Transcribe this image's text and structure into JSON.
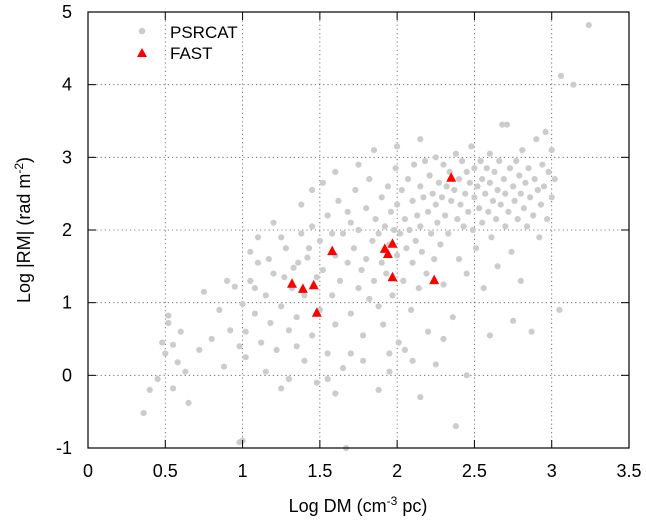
{
  "chart_data": {
    "type": "scatter",
    "xlabel": "Log DM (cm$-3$ pc)",
    "xlabel_parts": {
      "prefix": "Log DM (cm",
      "sup": "-3",
      "suffix": " pc)"
    },
    "ylabel_parts": {
      "prefix": "Log |RM| (rad m",
      "sup": "-2",
      "suffix": ")"
    },
    "xlim": [
      0,
      3.5
    ],
    "ylim": [
      -1,
      5
    ],
    "xticks": [
      0,
      0.5,
      1,
      1.5,
      2,
      2.5,
      3,
      3.5
    ],
    "xtick_labels": [
      "0",
      "0.5",
      "1",
      "1.5",
      "2",
      "2.5",
      "3",
      "3.5"
    ],
    "yticks": [
      -1,
      0,
      1,
      2,
      3,
      4,
      5
    ],
    "ytick_labels": [
      "-1",
      "0",
      "1",
      "2",
      "3",
      "4",
      "5"
    ],
    "grid": true,
    "grid_style": "dotted",
    "legend_position": "top-left",
    "colors": {
      "psrcat": "#cccccc",
      "fast": "#ff0000"
    },
    "series": [
      {
        "name": "PSRCAT",
        "marker": "circle",
        "sampled": true,
        "points": [
          [
            0.36,
            -0.52
          ],
          [
            0.4,
            -0.2
          ],
          [
            0.45,
            -0.05
          ],
          [
            0.48,
            0.45
          ],
          [
            0.5,
            0.3
          ],
          [
            0.52,
            0.82
          ],
          [
            0.52,
            0.72
          ],
          [
            0.55,
            0.42
          ],
          [
            0.55,
            -0.18
          ],
          [
            0.58,
            0.18
          ],
          [
            0.6,
            0.6
          ],
          [
            0.63,
            0.05
          ],
          [
            0.65,
            -0.38
          ],
          [
            0.72,
            0.35
          ],
          [
            0.75,
            1.15
          ],
          [
            0.8,
            0.5
          ],
          [
            0.85,
            0.9
          ],
          [
            0.88,
            0.12
          ],
          [
            0.92,
            0.62
          ],
          [
            0.95,
            1.22
          ],
          [
            0.98,
            0.4
          ],
          [
            1.0,
            0.98
          ],
          [
            1.0,
            -0.9
          ],
          [
            1.02,
            0.25
          ],
          [
            1.05,
            1.3
          ],
          [
            1.08,
            0.85
          ],
          [
            1.1,
            1.55
          ],
          [
            1.12,
            0.45
          ],
          [
            1.15,
            1.1
          ],
          [
            1.18,
            0.72
          ],
          [
            1.2,
            1.4
          ],
          [
            1.22,
            0.35
          ],
          [
            1.25,
            0.95
          ],
          [
            1.28,
            1.75
          ],
          [
            1.3,
            0.62
          ],
          [
            1.32,
            1.2
          ],
          [
            1.33,
            1.48
          ],
          [
            1.35,
            0.8
          ],
          [
            1.38,
            1.95
          ],
          [
            1.4,
            0.2
          ],
          [
            1.4,
            1.1
          ],
          [
            1.42,
            1.62
          ],
          [
            1.45,
            0.55
          ],
          [
            1.45,
            2.05
          ],
          [
            1.48,
            1.35
          ],
          [
            1.5,
            0.9
          ],
          [
            1.5,
            1.85
          ],
          [
            1.52,
            1.45
          ],
          [
            1.55,
            0.3
          ],
          [
            1.55,
            2.2
          ],
          [
            1.58,
            1.1
          ],
          [
            1.6,
            1.65
          ],
          [
            1.6,
            0.7
          ],
          [
            1.62,
            2.4
          ],
          [
            1.63,
            1.3
          ],
          [
            1.65,
            1.95
          ],
          [
            1.65,
            0.1
          ],
          [
            1.67,
            -1.0
          ],
          [
            1.68,
            1.55
          ],
          [
            1.7,
            2.1
          ],
          [
            1.7,
            0.85
          ],
          [
            1.72,
            1.75
          ],
          [
            1.73,
            2.55
          ],
          [
            1.75,
            1.2
          ],
          [
            1.75,
            2.0
          ],
          [
            1.77,
            1.45
          ],
          [
            1.78,
            0.55
          ],
          [
            1.8,
            2.3
          ],
          [
            1.8,
            1.6
          ],
          [
            1.82,
            1.05
          ],
          [
            1.82,
            2.7
          ],
          [
            1.84,
            1.85
          ],
          [
            1.85,
            1.3
          ],
          [
            1.86,
            2.15
          ],
          [
            1.88,
            0.95
          ],
          [
            1.88,
            1.95
          ],
          [
            1.9,
            2.45
          ],
          [
            1.9,
            1.55
          ],
          [
            1.91,
            0.7
          ],
          [
            1.92,
            2.05
          ],
          [
            1.93,
            1.4
          ],
          [
            1.94,
            2.6
          ],
          [
            1.95,
            1.8
          ],
          [
            1.96,
            2.25
          ],
          [
            1.97,
            1.1
          ],
          [
            1.98,
            2.0
          ],
          [
            1.99,
            2.85
          ],
          [
            2.0,
            1.65
          ],
          [
            2.0,
            2.35
          ],
          [
            2.01,
            0.45
          ],
          [
            2.02,
            1.95
          ],
          [
            2.03,
            2.55
          ],
          [
            2.04,
            1.3
          ],
          [
            2.05,
            2.15
          ],
          [
            2.06,
            1.75
          ],
          [
            2.07,
            2.7
          ],
          [
            2.08,
            2.0
          ],
          [
            2.09,
            0.9
          ],
          [
            2.1,
            2.4
          ],
          [
            2.1,
            1.55
          ],
          [
            2.11,
            2.9
          ],
          [
            2.12,
            1.85
          ],
          [
            2.13,
            2.2
          ],
          [
            2.14,
            1.2
          ],
          [
            2.15,
            2.6
          ],
          [
            2.15,
            2.05
          ],
          [
            2.16,
            1.7
          ],
          [
            2.17,
            2.45
          ],
          [
            2.18,
            2.95
          ],
          [
            2.19,
            1.4
          ],
          [
            2.2,
            2.25
          ],
          [
            2.2,
            0.6
          ],
          [
            2.21,
            2.75
          ],
          [
            2.22,
            1.95
          ],
          [
            2.23,
            2.5
          ],
          [
            2.24,
            1.6
          ],
          [
            2.25,
            2.35
          ],
          [
            2.25,
            3.0
          ],
          [
            2.26,
            2.1
          ],
          [
            2.27,
            2.65
          ],
          [
            2.28,
            1.8
          ],
          [
            2.29,
            2.45
          ],
          [
            2.3,
            2.9
          ],
          [
            2.3,
            1.25
          ],
          [
            2.31,
            2.2
          ],
          [
            2.32,
            2.6
          ],
          [
            2.33,
            1.95
          ],
          [
            2.34,
            2.8
          ],
          [
            2.35,
            2.4
          ],
          [
            2.36,
            0.8
          ],
          [
            2.37,
            2.55
          ],
          [
            2.38,
            3.05
          ],
          [
            2.39,
            2.15
          ],
          [
            2.4,
            2.7
          ],
          [
            2.4,
            1.6
          ],
          [
            2.41,
            2.35
          ],
          [
            2.42,
            2.95
          ],
          [
            2.43,
            2.05
          ],
          [
            2.44,
            2.5
          ],
          [
            2.45,
            2.8
          ],
          [
            2.45,
            1.4
          ],
          [
            2.46,
            2.25
          ],
          [
            2.47,
            2.65
          ],
          [
            2.48,
            3.15
          ],
          [
            2.49,
            2.0
          ],
          [
            2.5,
            2.45
          ],
          [
            2.5,
            2.85
          ],
          [
            2.51,
            1.75
          ],
          [
            2.52,
            2.6
          ],
          [
            2.53,
            2.3
          ],
          [
            2.54,
            2.95
          ],
          [
            2.55,
            2.1
          ],
          [
            2.55,
            2.7
          ],
          [
            2.56,
            1.2
          ],
          [
            2.57,
            2.5
          ],
          [
            2.58,
            2.85
          ],
          [
            2.59,
            2.25
          ],
          [
            2.6,
            2.65
          ],
          [
            2.6,
            3.05
          ],
          [
            2.61,
            1.9
          ],
          [
            2.62,
            2.4
          ],
          [
            2.63,
            2.8
          ],
          [
            2.64,
            2.15
          ],
          [
            2.65,
            2.55
          ],
          [
            2.65,
            1.5
          ],
          [
            2.66,
            2.95
          ],
          [
            2.67,
            2.35
          ],
          [
            2.68,
            3.45
          ],
          [
            2.69,
            2.7
          ],
          [
            2.7,
            2.05
          ],
          [
            2.7,
            2.5
          ],
          [
            2.71,
            3.45
          ],
          [
            2.72,
            2.25
          ],
          [
            2.73,
            2.85
          ],
          [
            2.74,
            1.7
          ],
          [
            2.75,
            2.6
          ],
          [
            2.76,
            2.4
          ],
          [
            2.77,
            2.95
          ],
          [
            2.78,
            2.15
          ],
          [
            2.79,
            2.75
          ],
          [
            2.8,
            2.5
          ],
          [
            2.8,
            1.3
          ],
          [
            2.81,
            3.1
          ],
          [
            2.82,
            2.3
          ],
          [
            2.83,
            2.65
          ],
          [
            2.84,
            2.05
          ],
          [
            2.85,
            2.85
          ],
          [
            2.86,
            2.45
          ],
          [
            2.87,
            0.6
          ],
          [
            2.88,
            2.2
          ],
          [
            2.89,
            2.7
          ],
          [
            2.9,
            3.25
          ],
          [
            2.91,
            2.55
          ],
          [
            2.92,
            1.9
          ],
          [
            2.93,
            2.35
          ],
          [
            2.94,
            2.9
          ],
          [
            2.95,
            2.6
          ],
          [
            2.96,
            3.35
          ],
          [
            2.97,
            2.15
          ],
          [
            2.98,
            2.8
          ],
          [
            3.0,
            2.45
          ],
          [
            3.0,
            3.1
          ],
          [
            3.02,
            2.7
          ],
          [
            3.05,
            0.9
          ],
          [
            3.06,
            4.12
          ],
          [
            3.14,
            4.0
          ],
          [
            3.24,
            4.82
          ],
          [
            2.38,
            -0.7
          ],
          [
            1.3,
            -0.05
          ],
          [
            1.15,
            0.05
          ],
          [
            1.25,
            -0.18
          ],
          [
            1.48,
            -0.1
          ],
          [
            1.6,
            -0.25
          ],
          [
            1.78,
            0.2
          ],
          [
            1.95,
            0.05
          ],
          [
            2.05,
            0.35
          ],
          [
            2.25,
            0.15
          ],
          [
            2.45,
            0.0
          ],
          [
            2.15,
            -0.3
          ],
          [
            1.88,
            -0.2
          ],
          [
            0.98,
            -0.92
          ],
          [
            1.35,
            0.4
          ],
          [
            1.7,
            0.3
          ],
          [
            1.55,
            -0.05
          ],
          [
            2.6,
            0.55
          ],
          [
            2.75,
            0.75
          ],
          [
            2.3,
            0.5
          ],
          [
            1.45,
            2.55
          ],
          [
            1.2,
            2.1
          ],
          [
            1.05,
            1.7
          ],
          [
            0.9,
            1.3
          ],
          [
            1.6,
            2.8
          ],
          [
            1.85,
            3.1
          ],
          [
            2.0,
            3.15
          ],
          [
            2.15,
            3.25
          ],
          [
            1.95,
            0.3
          ],
          [
            2.1,
            0.2
          ],
          [
            1.25,
            1.9
          ],
          [
            1.38,
            2.35
          ],
          [
            1.52,
            2.65
          ],
          [
            1.75,
            2.9
          ],
          [
            1.68,
            2.25
          ],
          [
            1.58,
            1.95
          ],
          [
            1.43,
            1.75
          ],
          [
            1.36,
            1.55
          ],
          [
            1.27,
            1.35
          ],
          [
            1.17,
            1.6
          ],
          [
            1.1,
            1.9
          ],
          [
            1.08,
            1.2
          ],
          [
            1.02,
            0.6
          ]
        ]
      },
      {
        "name": "FAST",
        "marker": "triangle",
        "points": [
          [
            1.32,
            1.26
          ],
          [
            1.39,
            1.19
          ],
          [
            1.46,
            1.24
          ],
          [
            1.48,
            0.86
          ],
          [
            1.58,
            1.71
          ],
          [
            1.92,
            1.74
          ],
          [
            1.94,
            1.67
          ],
          [
            1.97,
            1.81
          ],
          [
            1.97,
            1.35
          ],
          [
            2.24,
            1.31
          ],
          [
            2.35,
            2.72
          ]
        ]
      }
    ]
  }
}
